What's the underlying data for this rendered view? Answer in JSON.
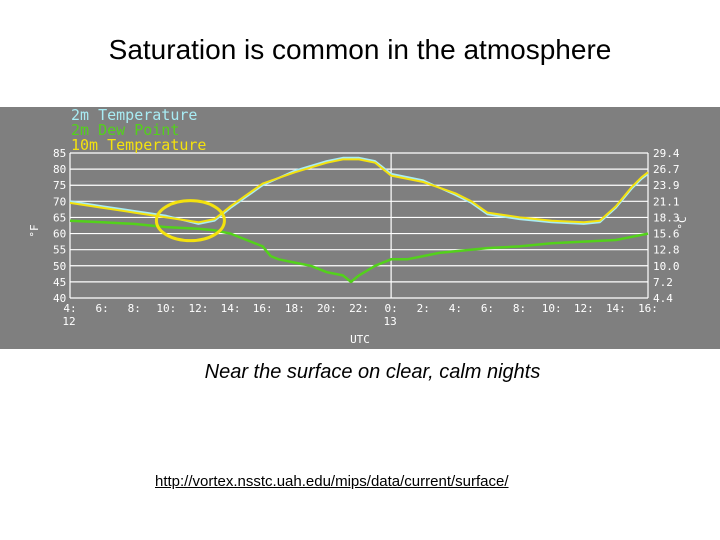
{
  "slide": {
    "title": "Saturation is common in the atmosphere",
    "caption": "Near the surface on clear, calm nights",
    "link": "http://vortex.nsstc.uah.edu/mips/data/current/surface/"
  },
  "chart_data": {
    "type": "line",
    "title": "",
    "xlabel": "UTC",
    "ylabel_left": "°F",
    "ylabel_right": "°C",
    "x_ticks": [
      {
        "t": 4,
        "label": "4:",
        "sub": "12"
      },
      {
        "t": 6,
        "label": "6:"
      },
      {
        "t": 8,
        "label": "8:"
      },
      {
        "t": 10,
        "label": "10:"
      },
      {
        "t": 12,
        "label": "12:"
      },
      {
        "t": 14,
        "label": "14:"
      },
      {
        "t": 16,
        "label": "16:"
      },
      {
        "t": 18,
        "label": "18:"
      },
      {
        "t": 20,
        "label": "20:"
      },
      {
        "t": 22,
        "label": "22:"
      },
      {
        "t": 24,
        "label": "0:",
        "sub": "13"
      },
      {
        "t": 26,
        "label": "2:"
      },
      {
        "t": 28,
        "label": "4:"
      },
      {
        "t": 30,
        "label": "6:"
      },
      {
        "t": 32,
        "label": "8:"
      },
      {
        "t": 34,
        "label": "10:"
      },
      {
        "t": 36,
        "label": "12:"
      },
      {
        "t": 38,
        "label": "14:"
      },
      {
        "t": 40,
        "label": "16:"
      }
    ],
    "xlim": [
      4,
      40
    ],
    "ylim": [
      40,
      85
    ],
    "y_ticks_left": [
      "85",
      "80",
      "75",
      "70",
      "65",
      "60",
      "55",
      "50",
      "45",
      "40"
    ],
    "y_ticks_right": [
      "29.4",
      "26.7",
      "23.9",
      "21.1",
      "18.3",
      "15.6",
      "12.8",
      "10.0",
      "7.2",
      "4.4"
    ],
    "grid": true,
    "legend_position": "top-left",
    "series": [
      {
        "name": "2m Temperature",
        "color": "#a8ecf4",
        "points": [
          [
            4,
            70
          ],
          [
            6,
            68.5
          ],
          [
            8,
            67
          ],
          [
            10,
            65.5
          ],
          [
            12,
            63
          ],
          [
            13,
            64
          ],
          [
            14,
            68
          ],
          [
            16,
            75
          ],
          [
            18,
            79.5
          ],
          [
            20,
            82.5
          ],
          [
            21,
            83.5
          ],
          [
            22,
            83.5
          ],
          [
            23,
            82.5
          ],
          [
            24,
            78.5
          ],
          [
            26,
            76.5
          ],
          [
            28,
            72
          ],
          [
            29,
            69.5
          ],
          [
            30,
            66
          ],
          [
            32,
            64.5
          ],
          [
            34,
            63.5
          ],
          [
            36,
            63
          ],
          [
            37,
            63.5
          ],
          [
            38,
            68
          ],
          [
            39,
            74
          ],
          [
            39.6,
            77
          ],
          [
            40,
            78.5
          ]
        ]
      },
      {
        "name": "2m Dew Point",
        "color": "#53d11b",
        "points": [
          [
            4,
            64
          ],
          [
            6,
            63.5
          ],
          [
            8,
            63
          ],
          [
            10,
            62
          ],
          [
            12,
            61.5
          ],
          [
            13,
            61
          ],
          [
            14,
            60
          ],
          [
            15,
            58
          ],
          [
            16,
            56
          ],
          [
            16.5,
            53
          ],
          [
            17,
            52
          ],
          [
            18,
            51
          ],
          [
            19,
            50
          ],
          [
            20,
            48
          ],
          [
            21,
            47
          ],
          [
            21.5,
            45
          ],
          [
            22,
            47
          ],
          [
            23,
            50
          ],
          [
            24,
            52
          ],
          [
            25,
            52
          ],
          [
            26,
            53
          ],
          [
            27,
            54
          ],
          [
            28,
            54.5
          ],
          [
            30,
            55.5
          ],
          [
            32,
            56
          ],
          [
            34,
            57
          ],
          [
            36,
            57.5
          ],
          [
            38,
            58
          ],
          [
            40,
            60
          ]
        ]
      },
      {
        "name": "10m Temperature",
        "color": "#f4e20e",
        "points": [
          [
            4,
            69.5
          ],
          [
            6,
            68
          ],
          [
            8,
            66.5
          ],
          [
            10,
            65
          ],
          [
            12,
            63.5
          ],
          [
            13,
            64.5
          ],
          [
            14,
            68.5
          ],
          [
            16,
            75.5
          ],
          [
            18,
            79
          ],
          [
            20,
            82
          ],
          [
            21,
            83
          ],
          [
            22,
            83
          ],
          [
            23,
            82
          ],
          [
            24,
            78
          ],
          [
            26,
            76
          ],
          [
            28,
            72.5
          ],
          [
            29,
            70
          ],
          [
            30,
            66.5
          ],
          [
            32,
            65
          ],
          [
            34,
            64
          ],
          [
            36,
            63.5
          ],
          [
            37,
            64
          ],
          [
            38,
            68.5
          ],
          [
            39,
            74.5
          ],
          [
            39.6,
            77.5
          ],
          [
            40,
            79
          ]
        ]
      }
    ],
    "annotation": {
      "type": "ellipse",
      "color": "#f4e20e",
      "t": 11.5,
      "value": 64
    }
  }
}
